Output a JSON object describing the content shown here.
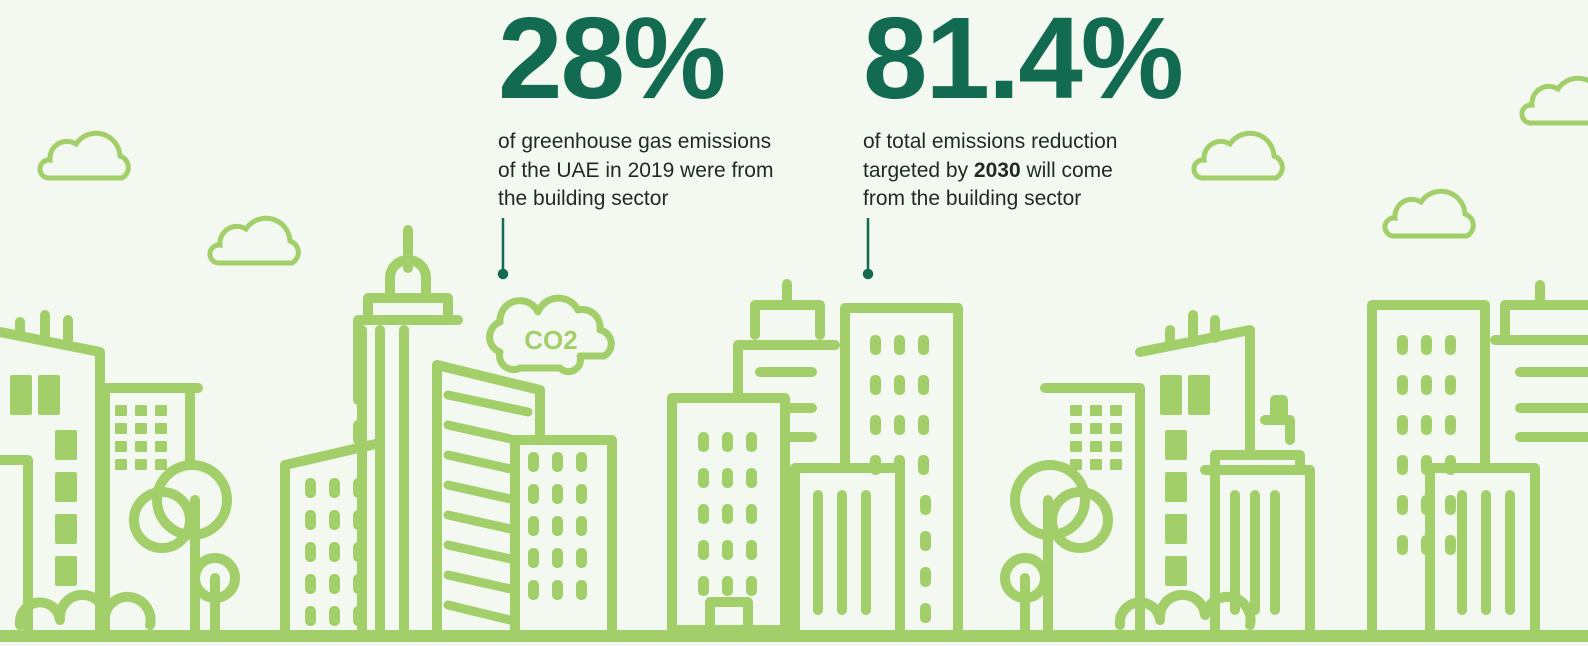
{
  "stats": [
    {
      "value": "28%",
      "lines": [
        [
          "of greenhouse gas emissions"
        ],
        [
          "of the UAE in 2019 were from"
        ],
        [
          "the building sector"
        ]
      ]
    },
    {
      "value": "81.4%",
      "lines": [
        [
          "of total emissions reduction"
        ],
        [
          "targeted by ",
          "2030",
          " will come"
        ],
        [
          "from the building sector"
        ]
      ]
    }
  ],
  "illustration": {
    "co2_label": "CO2"
  }
}
